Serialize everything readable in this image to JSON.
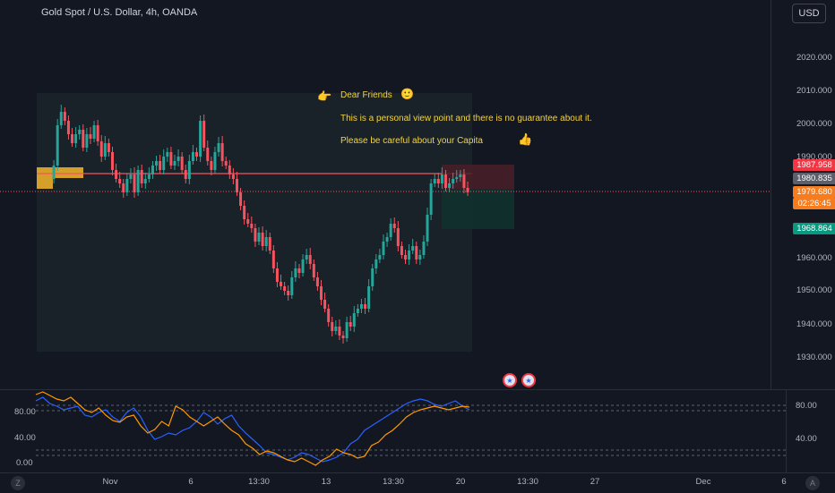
{
  "header": {
    "title": "Gold Spot / U.S. Dollar, 4h, OANDA",
    "currency_button": "USD"
  },
  "price_axis": {
    "ticks": [
      "2020.000",
      "2010.000",
      "2000.000",
      "1990.000",
      "1960.000",
      "1950.000",
      "1940.000",
      "1930.000"
    ],
    "labels": {
      "high": "1987.958",
      "mid": "1980.835",
      "last": "1979.680",
      "countdown": "02:26:45",
      "target": "1968.864"
    }
  },
  "annotation": {
    "line1": "Dear Friends",
    "line2": "This is a personal view point and there is no guarantee about it.",
    "line3": "Please be careful about your Capita"
  },
  "indicator": {
    "left_ticks": [
      "80.00",
      "40.00",
      "0.00"
    ],
    "right_ticks": [
      "80.00",
      "40.00"
    ]
  },
  "time_axis": {
    "ticks": [
      "Nov",
      "6",
      "13:30",
      "13",
      "13:30",
      "20",
      "13:30",
      "27",
      "Dec",
      "6"
    ],
    "left_icon": "Z",
    "right_icon": "A"
  },
  "colors": {
    "up": "#26a69a",
    "down": "#f7525f",
    "background": "#131722"
  },
  "icons": {
    "flag_icon": "us-flag-icon",
    "pointing_hand": "pointing-right-icon",
    "smile": "smile-icon",
    "thumb": "thumbs-up-icon"
  }
}
